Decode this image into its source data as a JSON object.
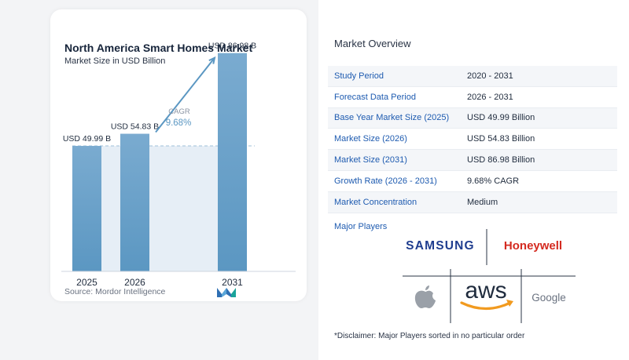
{
  "chart_card": {
    "title": "North America Smart Homes Market",
    "subtitle": "Market Size in USD Billion",
    "source": "Source:  Mordor Intelligence",
    "logo_icon": "mordor-intelligence-logo-icon"
  },
  "chart_data": {
    "type": "bar",
    "title": "North America Smart Homes Market",
    "subtitle": "Market Size in USD Billion",
    "categories": [
      "2025",
      "2026",
      "2031"
    ],
    "values": [
      49.99,
      54.83,
      86.98
    ],
    "value_labels": [
      "USD 49.99 B",
      "USD 54.83 B",
      "USD 86.98 B"
    ],
    "cagr_label": "CAGR",
    "cagr_value": "9.68%",
    "ylim": [
      0,
      90
    ],
    "grid": false,
    "bar_color": "#5b97c2",
    "bar_color_top": "#7aabd0"
  },
  "overview": {
    "title": "Market Overview",
    "rows": [
      {
        "key": "Study Period",
        "value": "2020 - 2031"
      },
      {
        "key": "Forecast Data Period",
        "value": "2026 - 2031"
      },
      {
        "key": "Base Year Market Size (2025)",
        "value": "USD 49.99 Billion"
      },
      {
        "key": "Market Size (2026)",
        "value": "USD 54.83 Billion"
      },
      {
        "key": "Market Size (2031)",
        "value": "USD 86.98 Billion"
      },
      {
        "key": "Growth Rate (2026 - 2031)",
        "value": "9.68% CAGR"
      },
      {
        "key": "Market Concentration",
        "value": "Medium"
      }
    ],
    "players_title": "Major Players",
    "players": [
      {
        "name": "SAMSUNG",
        "icon": "samsung-logo"
      },
      {
        "name": "Honeywell",
        "icon": "honeywell-logo"
      },
      {
        "name": "aws",
        "icon": "aws-logo"
      },
      {
        "name": "apple",
        "icon": "apple-logo-icon"
      },
      {
        "name": "Google",
        "icon": "google-logo"
      }
    ],
    "disclaimer": "*Disclaimer: Major Players sorted in no particular order"
  },
  "colors": {
    "key_text": "#1e5bb0",
    "samsung": "#1f3d8f",
    "honeywell": "#d42a20",
    "aws_orange": "#f19a1f",
    "apple_gray": "#9aa0a8"
  }
}
